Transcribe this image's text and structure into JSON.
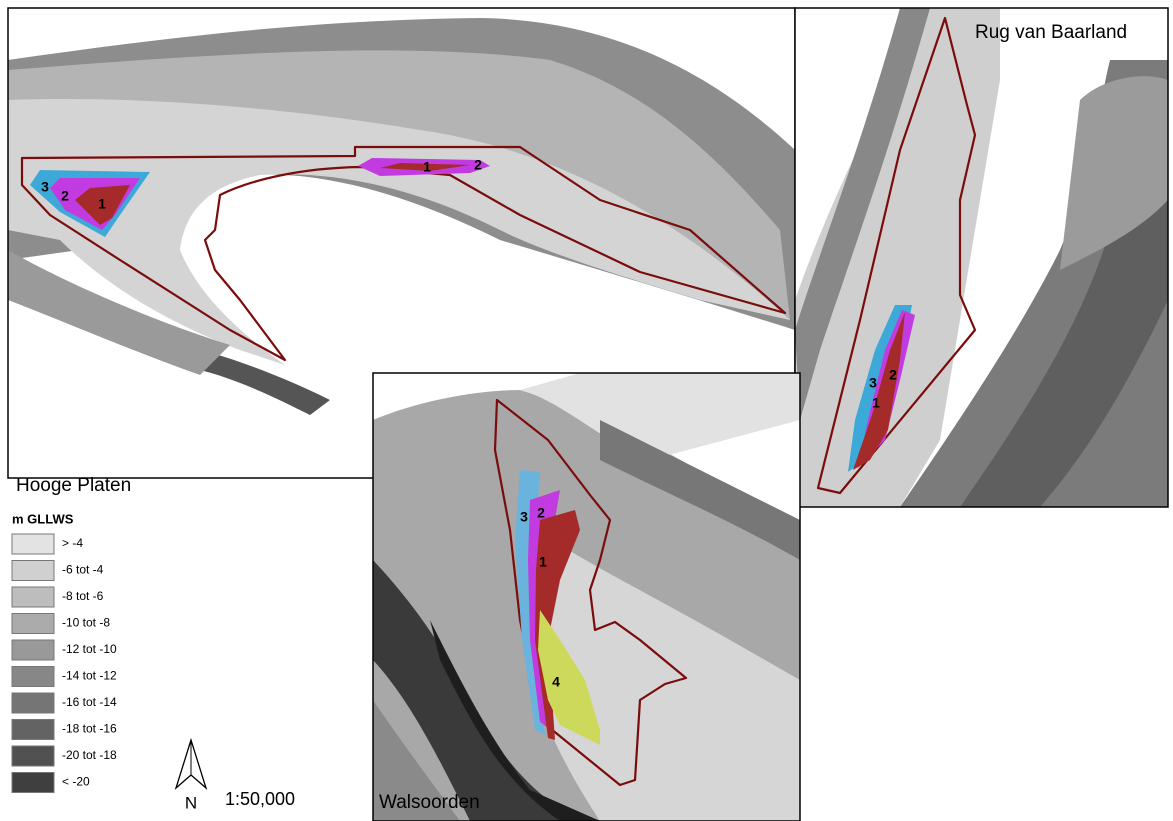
{
  "panels": [
    {
      "label": "Hooge Platen",
      "zones": [
        "3",
        "2",
        "1",
        "1",
        "2"
      ]
    },
    {
      "label": "Rug van Baarland",
      "zones": [
        "3",
        "2",
        "1"
      ]
    },
    {
      "label": "Walsoorden",
      "zones": [
        "3",
        "2",
        "1",
        "4"
      ]
    }
  ],
  "legend": {
    "title": "m GLLWS",
    "items": [
      "> -4",
      "-6 tot -4",
      "-8 tot -6",
      "-10 tot -8",
      "-12 tot -10",
      "-14 tot -12",
      "-16 tot -14",
      "-18 tot -16",
      "-20 tot -18",
      "< -20"
    ]
  },
  "north": "N",
  "scale": "1:50,000"
}
